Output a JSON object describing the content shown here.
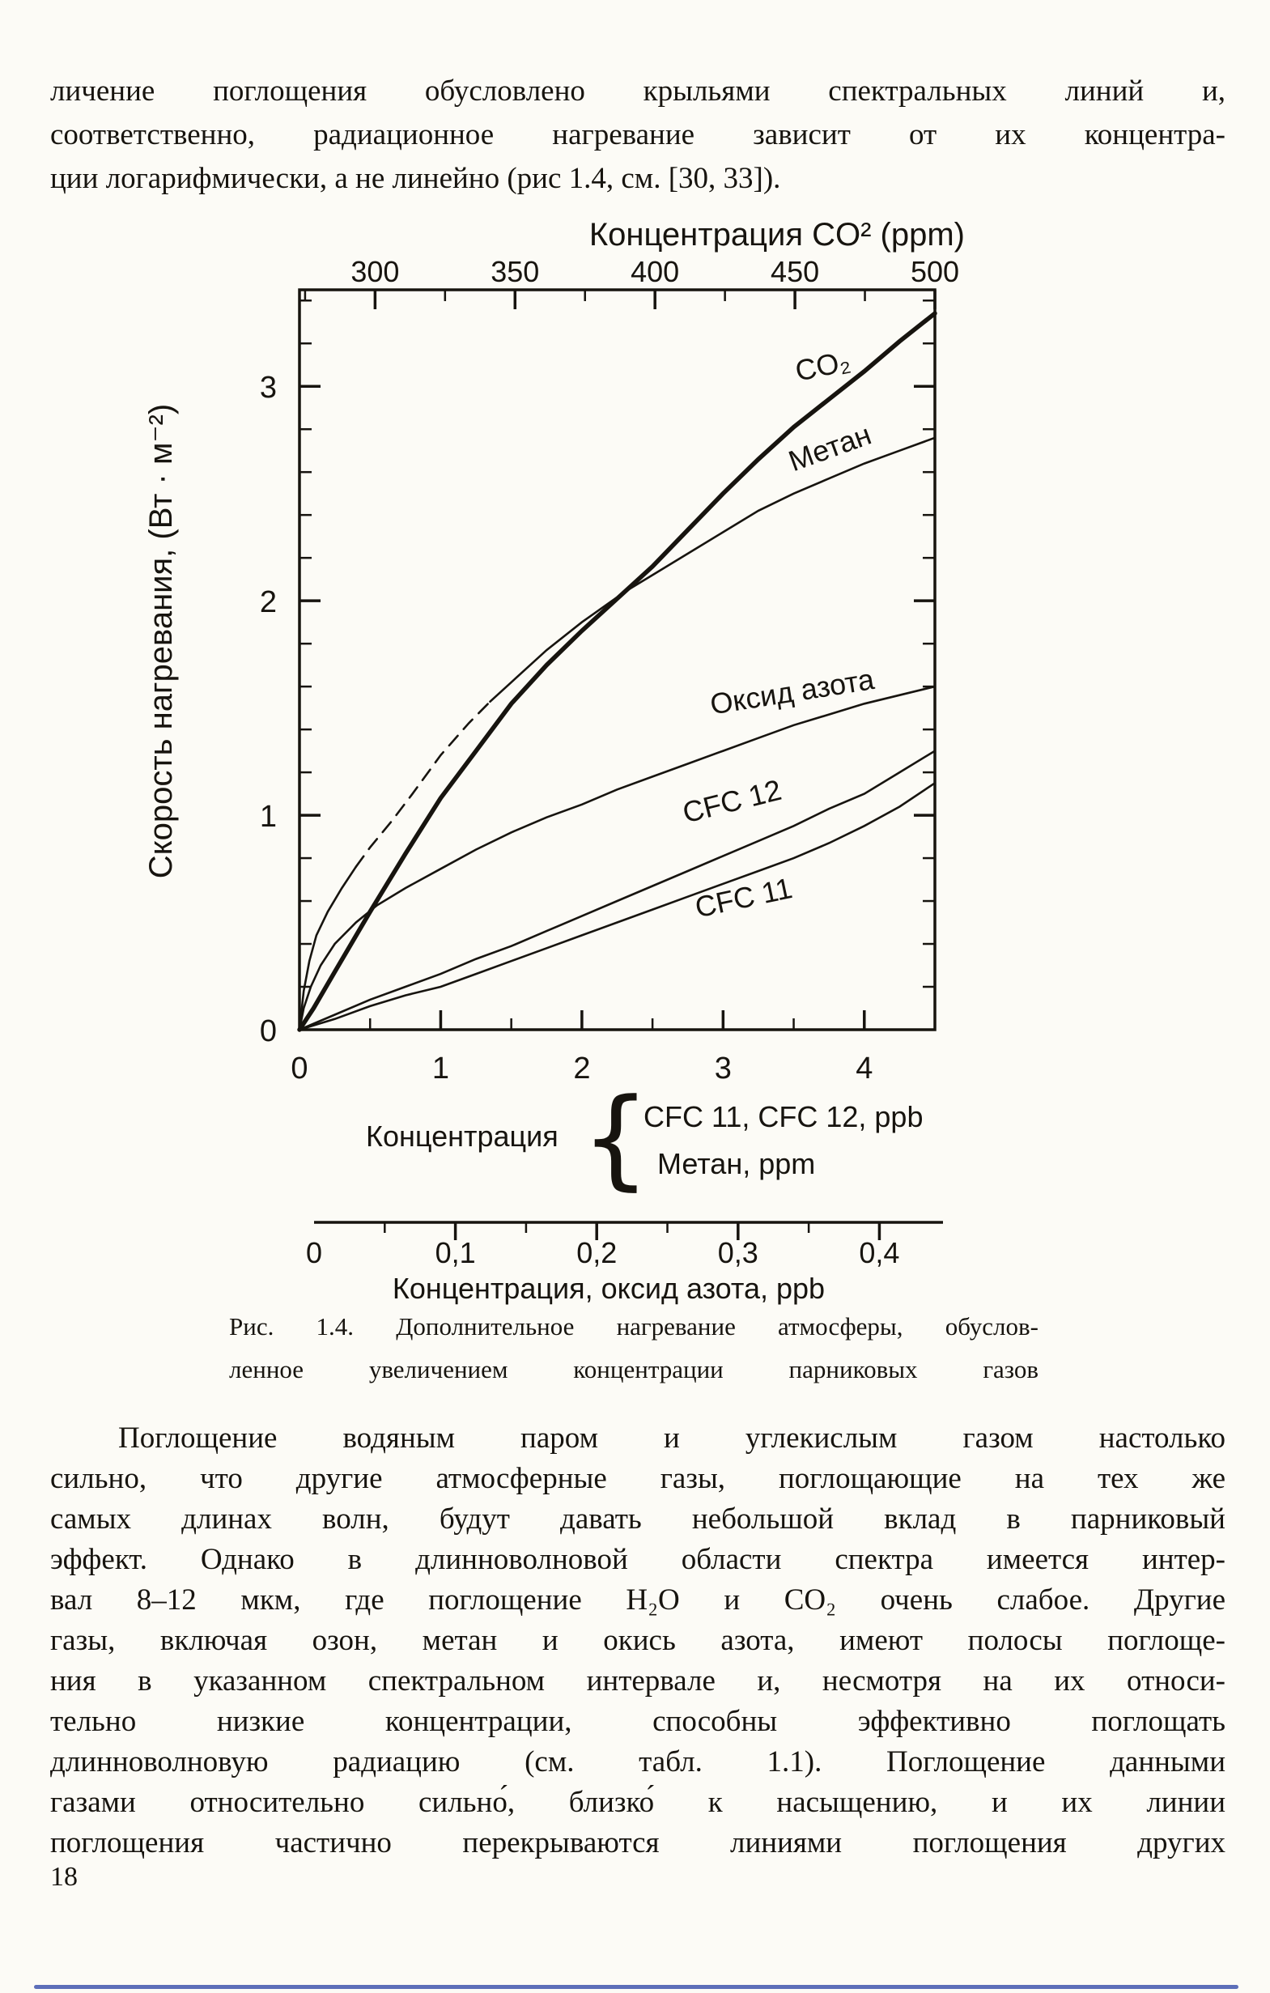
{
  "page": {
    "number": "18",
    "colors": {
      "paper": "#fcfbf6",
      "ink": "#17140f",
      "scan_edge_blue": "#4156ae"
    }
  },
  "paragraph_top": {
    "lines": [
      "личение поглощения обусловлено крыльями спектральных линий и,",
      "соответственно, радиационное нагревание зависит от их концентра-",
      "ции логарифмически, а не линейно (рис 1.4, см. [30, 33])."
    ]
  },
  "figure": {
    "legend": {
      "label": "Концентрация",
      "brace": "{",
      "line1": "CFC 11,  CFC 12,  ppb",
      "line2": "Метан,  ppm"
    },
    "caption": {
      "line1": "Рис. 1.4. Дополнительное нагревание атмосферы, обуслов-",
      "line2": "ленное увеличением концентрации парниковых газов"
    }
  },
  "paragraph_main": {
    "lines": [
      "Поглощение водяным паром и углекислым газом настолько",
      "сильно, что другие атмосферные газы, поглощающие на тех же",
      "самых длинах волн, будут давать небольшой вклад в парниковый",
      "эффект. Однако в длинноволновой области спектра имеется интер-",
      "вал 8–12 мкм, где поглощение H₂O и CO₂ очень слабое. Другие",
      "газы, включая озон, метан и окись азота, имеют полосы поглоще-",
      "ния в указанном спектральном интервале и, несмотря на их относи-",
      "тельно низкие концентрации, способны эффективно поглощать",
      "длинноволновую радиацию (см. табл. 1.1). Поглощение данными",
      "газами относительно сильно́, близко́ к насыщению, и их линии",
      "поглощения частично перекрываются линиями поглощения других"
    ]
  },
  "chart_data": {
    "type": "line",
    "title": "",
    "grid": false,
    "legend_position": "below",
    "top_axis": {
      "label": "Концентрация CO² (ppm)",
      "range": [
        273,
        500
      ],
      "major_ticks": [
        300,
        350,
        400,
        450,
        500
      ],
      "label_values": [
        300,
        350,
        400,
        450,
        500
      ],
      "tick_labels": [
        "300",
        "350",
        "400",
        "450",
        "500"
      ],
      "minor_step": 25
    },
    "x_axis": {
      "label": "Концентрация",
      "unit_note": "CFC 11, CFC 12 — ppb; Метан — ppm",
      "range": [
        0,
        4.5
      ],
      "major_ticks": [
        1,
        2,
        3,
        4
      ],
      "label_values": [
        0,
        1,
        2,
        3,
        4
      ],
      "tick_labels": [
        "0",
        "1",
        "2",
        "3",
        "4"
      ],
      "minor_step": 0.5
    },
    "y_axis": {
      "label": "Скорость нагревания, (Вт · м⁻²)",
      "range": [
        0,
        3.45
      ],
      "major_ticks": [
        1,
        2,
        3
      ],
      "label_values": [
        0,
        1,
        2,
        3
      ],
      "tick_labels": [
        "0",
        "1",
        "2",
        "3"
      ],
      "minor_step": 0.2
    },
    "n2o_axis": {
      "label": "Концентрация,  оксид азота,   ppb",
      "range": [
        0,
        0.445
      ],
      "major_ticks": [
        0.1,
        0.2,
        0.3,
        0.4
      ],
      "label_values": [
        0,
        0.1,
        0.2,
        0.3,
        0.4
      ],
      "tick_labels": [
        "0",
        "0,1",
        "0,2",
        "0,3",
        "0,4"
      ],
      "minor_step": 0.05
    },
    "series": [
      {
        "key": "co2",
        "name": "CO₂",
        "thick": true,
        "label_at": [
          3.72,
          3.05
        ],
        "label_rotate": -12,
        "points": [
          [
            0,
            0
          ],
          [
            0.1,
            0.1
          ],
          [
            0.25,
            0.27
          ],
          [
            0.5,
            0.55
          ],
          [
            0.75,
            0.82
          ],
          [
            1,
            1.08
          ],
          [
            1.25,
            1.3
          ],
          [
            1.5,
            1.52
          ],
          [
            1.75,
            1.7
          ],
          [
            2,
            1.86
          ],
          [
            2.25,
            2.01
          ],
          [
            2.5,
            2.16
          ],
          [
            2.75,
            2.33
          ],
          [
            3,
            2.5
          ],
          [
            3.25,
            2.66
          ],
          [
            3.5,
            2.81
          ],
          [
            3.75,
            2.94
          ],
          [
            4,
            3.07
          ],
          [
            4.25,
            3.21
          ],
          [
            4.5,
            3.34
          ]
        ]
      },
      {
        "key": "methane",
        "name": "Метан",
        "thick": false,
        "dash_between": [
          0.4,
          1.35
        ],
        "label_at": [
          3.78,
          2.67
        ],
        "label_rotate": -20,
        "points": [
          [
            0,
            0
          ],
          [
            0.03,
            0.18
          ],
          [
            0.07,
            0.32
          ],
          [
            0.12,
            0.44
          ],
          [
            0.2,
            0.55
          ],
          [
            0.3,
            0.66
          ],
          [
            0.4,
            0.76
          ],
          [
            0.5,
            0.85
          ],
          [
            0.65,
            0.97
          ],
          [
            0.8,
            1.1
          ],
          [
            1,
            1.28
          ],
          [
            1.2,
            1.43
          ],
          [
            1.35,
            1.53
          ],
          [
            1.5,
            1.62
          ],
          [
            1.75,
            1.77
          ],
          [
            2,
            1.9
          ],
          [
            2.3,
            2.04
          ],
          [
            2.5,
            2.12
          ],
          [
            2.75,
            2.22
          ],
          [
            3,
            2.32
          ],
          [
            3.25,
            2.42
          ],
          [
            3.5,
            2.5
          ],
          [
            3.75,
            2.57
          ],
          [
            4,
            2.64
          ],
          [
            4.25,
            2.7
          ],
          [
            4.5,
            2.76
          ]
        ]
      },
      {
        "key": "n2o",
        "name": "Оксид азота",
        "thick": false,
        "label_at": [
          3.5,
          1.53
        ],
        "label_rotate": -9,
        "points": [
          [
            0,
            0
          ],
          [
            0.03,
            0.1
          ],
          [
            0.08,
            0.2
          ],
          [
            0.15,
            0.3
          ],
          [
            0.25,
            0.4
          ],
          [
            0.4,
            0.5
          ],
          [
            0.55,
            0.58
          ],
          [
            0.75,
            0.66
          ],
          [
            1,
            0.75
          ],
          [
            1.25,
            0.84
          ],
          [
            1.5,
            0.92
          ],
          [
            1.75,
            0.99
          ],
          [
            2,
            1.05
          ],
          [
            2.25,
            1.12
          ],
          [
            2.5,
            1.18
          ],
          [
            2.75,
            1.24
          ],
          [
            3,
            1.3
          ],
          [
            3.25,
            1.36
          ],
          [
            3.5,
            1.42
          ],
          [
            3.75,
            1.47
          ],
          [
            4,
            1.52
          ],
          [
            4.25,
            1.56
          ],
          [
            4.5,
            1.6
          ]
        ]
      },
      {
        "key": "cfc12",
        "name": "CFC 12",
        "thick": false,
        "label_at": [
          3.08,
          1.02
        ],
        "label_rotate": -14,
        "points": [
          [
            0,
            0
          ],
          [
            0.25,
            0.07
          ],
          [
            0.5,
            0.14
          ],
          [
            0.75,
            0.2
          ],
          [
            1,
            0.26
          ],
          [
            1.25,
            0.33
          ],
          [
            1.5,
            0.39
          ],
          [
            1.75,
            0.46
          ],
          [
            2,
            0.53
          ],
          [
            2.25,
            0.6
          ],
          [
            2.5,
            0.67
          ],
          [
            2.75,
            0.74
          ],
          [
            3,
            0.81
          ],
          [
            3.25,
            0.88
          ],
          [
            3.5,
            0.95
          ],
          [
            3.75,
            1.03
          ],
          [
            4,
            1.1
          ],
          [
            4.25,
            1.2
          ],
          [
            4.5,
            1.3
          ]
        ]
      },
      {
        "key": "cfc11",
        "name": "CFC 11",
        "thick": false,
        "label_at": [
          3.16,
          0.57
        ],
        "label_rotate": -12,
        "points": [
          [
            0,
            0
          ],
          [
            0.25,
            0.05
          ],
          [
            0.5,
            0.11
          ],
          [
            0.75,
            0.16
          ],
          [
            1,
            0.2
          ],
          [
            1.25,
            0.26
          ],
          [
            1.5,
            0.32
          ],
          [
            1.75,
            0.38
          ],
          [
            2,
            0.44
          ],
          [
            2.25,
            0.5
          ],
          [
            2.5,
            0.56
          ],
          [
            2.75,
            0.62
          ],
          [
            3,
            0.68
          ],
          [
            3.25,
            0.74
          ],
          [
            3.5,
            0.8
          ],
          [
            3.75,
            0.87
          ],
          [
            4,
            0.95
          ],
          [
            4.25,
            1.04
          ],
          [
            4.5,
            1.15
          ]
        ]
      }
    ]
  }
}
